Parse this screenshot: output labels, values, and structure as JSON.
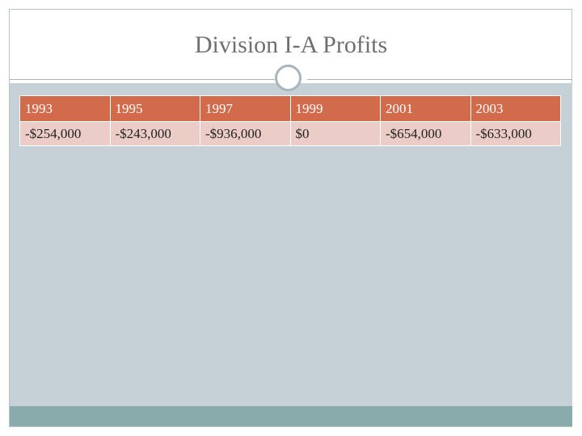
{
  "slide": {
    "title": "Division I-A Profits"
  },
  "table": {
    "years": [
      "1993",
      "1995",
      "1997",
      "1999",
      "2001",
      "2003"
    ],
    "profits": [
      "-$254,000",
      "-$243,000",
      "-$936,000",
      "$0",
      "-$654,000",
      "-$633,000"
    ]
  },
  "colors": {
    "header_fill": "#d26a4c",
    "row_fill": "#ecccc6",
    "content_fill": "#c5d1d7",
    "footer_fill": "#8aabab"
  }
}
